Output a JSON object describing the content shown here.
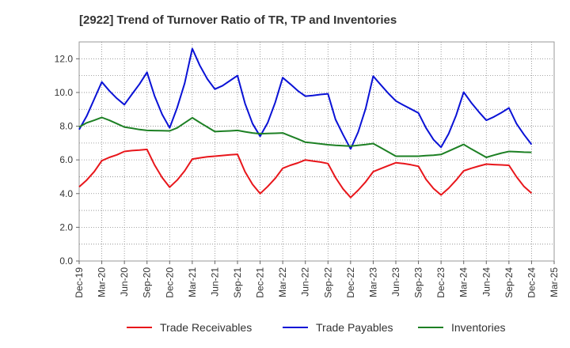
{
  "chart_data": {
    "type": "line",
    "title": "[2922]  Trend of Turnover Ratio of TR, TP and Inventories",
    "xlabel": "",
    "ylabel": "",
    "ylim": [
      0,
      13
    ],
    "yticks": [
      "0.0",
      "2.0",
      "4.0",
      "6.0",
      "8.0",
      "10.0",
      "12.0"
    ],
    "xtick_labels": [
      "Dec-19",
      "Mar-20",
      "Jun-20",
      "Sep-20",
      "Dec-20",
      "Mar-21",
      "Jun-21",
      "Sep-21",
      "Dec-21",
      "Mar-22",
      "Jun-22",
      "Sep-22",
      "Dec-22",
      "Mar-23",
      "Jun-23",
      "Sep-23",
      "Dec-23",
      "Mar-24",
      "Jun-24",
      "Sep-24",
      "Dec-24",
      "Mar-25"
    ],
    "x": [
      "Dec-19",
      "Jan-20",
      "Feb-20",
      "Mar-20",
      "Apr-20",
      "May-20",
      "Jun-20",
      "Jul-20",
      "Aug-20",
      "Sep-20",
      "Oct-20",
      "Nov-20",
      "Dec-20",
      "Jan-21",
      "Feb-21",
      "Mar-21",
      "Apr-21",
      "May-21",
      "Jun-21",
      "Jul-21",
      "Aug-21",
      "Sep-21",
      "Oct-21",
      "Nov-21",
      "Dec-21",
      "Jan-22",
      "Feb-22",
      "Mar-22",
      "Apr-22",
      "May-22",
      "Jun-22",
      "Jul-22",
      "Aug-22",
      "Sep-22",
      "Oct-22",
      "Nov-22",
      "Dec-22",
      "Jan-23",
      "Feb-23",
      "Mar-23",
      "Apr-23",
      "May-23",
      "Jun-23",
      "Jul-23",
      "Aug-23",
      "Sep-23",
      "Oct-23",
      "Nov-23",
      "Dec-23",
      "Jan-24",
      "Feb-24",
      "Mar-24",
      "Apr-24",
      "May-24",
      "Jun-24",
      "Jul-24",
      "Aug-24",
      "Sep-24",
      "Oct-24",
      "Nov-24",
      "Dec-24"
    ],
    "grid": true,
    "legend_position": "bottom",
    "series": [
      {
        "name": "Trade Receivables",
        "color": "#e8161b",
        "values": [
          4.4,
          4.8,
          5.3,
          5.95,
          6.15,
          6.3,
          6.5,
          6.55,
          6.58,
          6.62,
          5.7,
          4.95,
          4.38,
          4.8,
          5.35,
          6.05,
          6.12,
          6.18,
          6.22,
          6.26,
          6.3,
          6.33,
          5.3,
          4.55,
          4.0,
          4.42,
          4.9,
          5.5,
          5.68,
          5.82,
          6.0,
          5.93,
          5.87,
          5.78,
          4.95,
          4.28,
          3.77,
          4.2,
          4.7,
          5.3,
          5.48,
          5.66,
          5.83,
          5.78,
          5.71,
          5.62,
          4.85,
          4.3,
          3.92,
          4.32,
          4.8,
          5.35,
          5.5,
          5.63,
          5.75,
          5.72,
          5.7,
          5.68,
          5.0,
          4.42,
          4.02
        ]
      },
      {
        "name": "Trade Payables",
        "color": "#0a12d6",
        "values": [
          7.8,
          8.6,
          9.6,
          10.62,
          10.1,
          9.65,
          9.28,
          9.9,
          10.5,
          11.2,
          9.8,
          8.7,
          7.9,
          9.1,
          10.55,
          12.6,
          11.6,
          10.8,
          10.2,
          10.4,
          10.7,
          11.0,
          9.35,
          8.15,
          7.4,
          8.2,
          9.4,
          10.88,
          10.5,
          10.1,
          9.78,
          9.82,
          9.88,
          9.92,
          8.4,
          7.5,
          6.65,
          7.65,
          9.05,
          10.97,
          10.45,
          9.95,
          9.5,
          9.25,
          9.02,
          8.78,
          7.9,
          7.2,
          6.75,
          7.55,
          8.65,
          10.02,
          9.4,
          8.85,
          8.35,
          8.55,
          8.8,
          9.08,
          8.15,
          7.5,
          6.92
        ]
      },
      {
        "name": "Inventories",
        "color": "#1d8024",
        "values": [
          7.95,
          8.2,
          8.35,
          8.52,
          8.35,
          8.15,
          7.95,
          7.88,
          7.8,
          7.75,
          7.74,
          7.73,
          7.72,
          7.9,
          8.2,
          8.5,
          8.22,
          7.95,
          7.68,
          7.7,
          7.72,
          7.75,
          7.67,
          7.6,
          7.55,
          7.57,
          7.58,
          7.6,
          7.42,
          7.24,
          7.05,
          7.0,
          6.95,
          6.9,
          6.86,
          6.84,
          6.82,
          6.86,
          6.91,
          6.97,
          6.72,
          6.47,
          6.22,
          6.22,
          6.22,
          6.22,
          6.25,
          6.28,
          6.32,
          6.52,
          6.72,
          6.92,
          6.65,
          6.4,
          6.15,
          6.28,
          6.4,
          6.5,
          6.48,
          6.46,
          6.45
        ]
      }
    ]
  }
}
